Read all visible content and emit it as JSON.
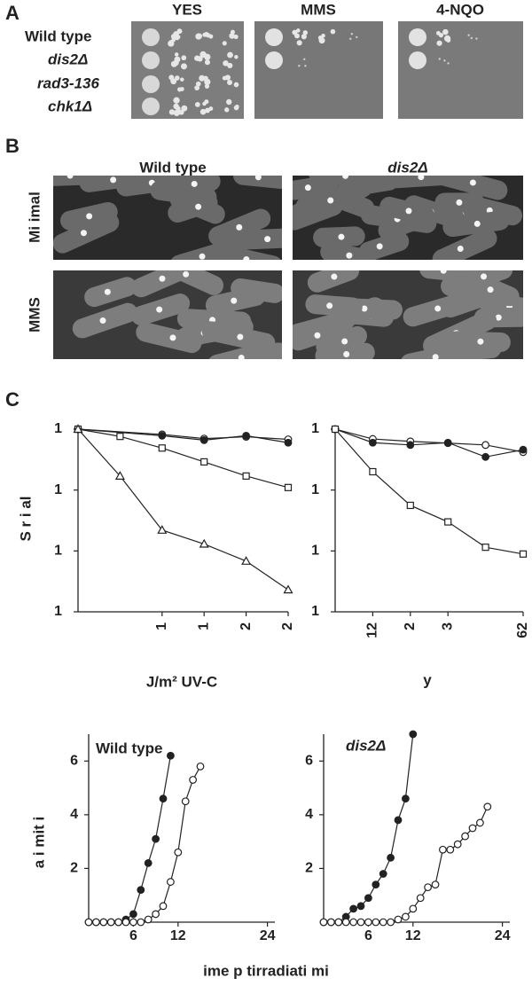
{
  "panel_a": {
    "label": "A",
    "columns": [
      "YES",
      "MMS",
      "4-NQO"
    ],
    "rows": [
      "Wild type",
      "dis2Δ",
      "rad3-136",
      "chk1Δ"
    ]
  },
  "panel_b": {
    "label": "B",
    "columns": [
      "Wild type",
      "dis2Δ"
    ],
    "rows": [
      "Mi imal",
      "MMS"
    ]
  },
  "panel_c_label": "C",
  "chart_data": [
    {
      "type": "line",
      "log_y": true,
      "y_label": "S r i al",
      "x_label": "J/m² UV-C",
      "xlim": [
        0,
        250
      ],
      "ylim": [
        0.001,
        1
      ],
      "xticks": [
        {
          "value": 100,
          "label": "1"
        },
        {
          "value": 150,
          "label": "1"
        },
        {
          "value": 200,
          "label": "2"
        },
        {
          "value": 250,
          "label": "2"
        }
      ],
      "yticks": [
        1,
        {
          "value": 0.1,
          "label": "1"
        },
        {
          "value": 0.01,
          "label": "1"
        },
        {
          "value": 0.001,
          "label": "1"
        }
      ],
      "series": [
        {
          "marker": "circle",
          "filled": false,
          "color": "#222",
          "x": [
            0,
            100,
            150,
            200,
            250
          ],
          "values": [
            1,
            0.82,
            0.7,
            0.75,
            0.68
          ]
        },
        {
          "marker": "circle",
          "filled": true,
          "color": "#222",
          "x": [
            0,
            100,
            150,
            200,
            250
          ],
          "values": [
            1,
            0.78,
            0.66,
            0.78,
            0.6
          ]
        },
        {
          "marker": "square",
          "filled": false,
          "color": "#222",
          "x": [
            0,
            50,
            100,
            150,
            200,
            250
          ],
          "values": [
            1,
            0.76,
            0.49,
            0.29,
            0.17,
            0.11
          ]
        },
        {
          "marker": "triangle",
          "filled": false,
          "color": "#222",
          "x": [
            0,
            50,
            100,
            150,
            200,
            250
          ],
          "values": [
            1,
            0.17,
            0.022,
            0.013,
            0.0068,
            0.0023
          ]
        }
      ]
    },
    {
      "type": "line",
      "log_y": true,
      "x_label": "y",
      "xlim": [
        0,
        625
      ],
      "ylim": [
        0.001,
        1
      ],
      "xticks": [
        {
          "value": 125,
          "label": "12"
        },
        {
          "value": 250,
          "label": "2"
        },
        {
          "value": 375,
          "label": "3"
        },
        {
          "value": 625,
          "label": "62"
        }
      ],
      "yticks": [
        1,
        {
          "value": 0.1,
          "label": "1"
        },
        {
          "value": 0.01,
          "label": "1"
        },
        {
          "value": 0.001,
          "label": "1"
        }
      ],
      "series": [
        {
          "marker": "circle",
          "filled": false,
          "color": "#222",
          "x": [
            0,
            125,
            250,
            375,
            500,
            625
          ],
          "values": [
            1,
            0.69,
            0.63,
            0.59,
            0.55,
            0.42
          ]
        },
        {
          "marker": "circle",
          "filled": true,
          "color": "#222",
          "x": [
            0,
            125,
            250,
            375,
            500,
            625
          ],
          "values": [
            1,
            0.6,
            0.55,
            0.6,
            0.35,
            0.46
          ]
        },
        {
          "marker": "square",
          "filled": false,
          "color": "#222",
          "x": [
            0,
            125,
            250,
            375,
            500,
            625
          ],
          "values": [
            1,
            0.2,
            0.056,
            0.03,
            0.0115,
            0.0089
          ]
        }
      ]
    },
    {
      "type": "line",
      "log_y": false,
      "title": "Wild type",
      "y_label": "a i mit i",
      "x_label": "ime p tirradiati mi",
      "xlim": [
        0,
        25
      ],
      "ylim": [
        0,
        7
      ],
      "xticks": [
        6,
        12,
        24
      ],
      "yticks": [
        2,
        4,
        6
      ],
      "series": [
        {
          "marker": "circle",
          "filled": true,
          "color": "#222",
          "x": [
            0,
            1,
            2,
            3,
            4,
            5,
            6,
            7,
            8,
            9,
            10,
            11
          ],
          "values": [
            0,
            0,
            0,
            0,
            0,
            0.1,
            0.3,
            1.2,
            2.2,
            3.1,
            4.6,
            6.2
          ]
        },
        {
          "marker": "circle",
          "filled": false,
          "color": "#222",
          "x": [
            0,
            1,
            2,
            3,
            4,
            5,
            6,
            7,
            8,
            9,
            10,
            11,
            12,
            13,
            14,
            15
          ],
          "values": [
            0,
            0,
            0,
            0,
            0,
            0,
            0,
            0,
            0.1,
            0.3,
            0.6,
            1.5,
            2.6,
            4.5,
            5.3,
            5.8
          ]
        }
      ]
    },
    {
      "type": "line",
      "log_y": false,
      "title": "dis2Δ",
      "xlim": [
        0,
        25
      ],
      "ylim": [
        0,
        7
      ],
      "xticks": [
        6,
        12,
        24
      ],
      "yticks": [
        2,
        4,
        6
      ],
      "series": [
        {
          "marker": "circle",
          "filled": true,
          "color": "#222",
          "x": [
            0,
            1,
            2,
            3,
            4,
            5,
            6,
            7,
            8,
            9,
            10,
            11,
            12
          ],
          "values": [
            0,
            0,
            0,
            0.2,
            0.5,
            0.6,
            0.9,
            1.4,
            1.8,
            2.4,
            3.8,
            4.6,
            7.0
          ]
        },
        {
          "marker": "circle",
          "filled": false,
          "color": "#222",
          "x": [
            0,
            1,
            2,
            3,
            4,
            5,
            6,
            7,
            8,
            9,
            10,
            11,
            12,
            13,
            14,
            15,
            16,
            17,
            18,
            19,
            20,
            21,
            22
          ],
          "values": [
            0,
            0,
            0,
            0,
            0,
            0,
            0,
            0,
            0,
            0,
            0.1,
            0.2,
            0.5,
            0.9,
            1.3,
            1.4,
            2.7,
            2.7,
            2.9,
            3.2,
            3.5,
            3.7,
            4.3
          ]
        }
      ]
    }
  ]
}
